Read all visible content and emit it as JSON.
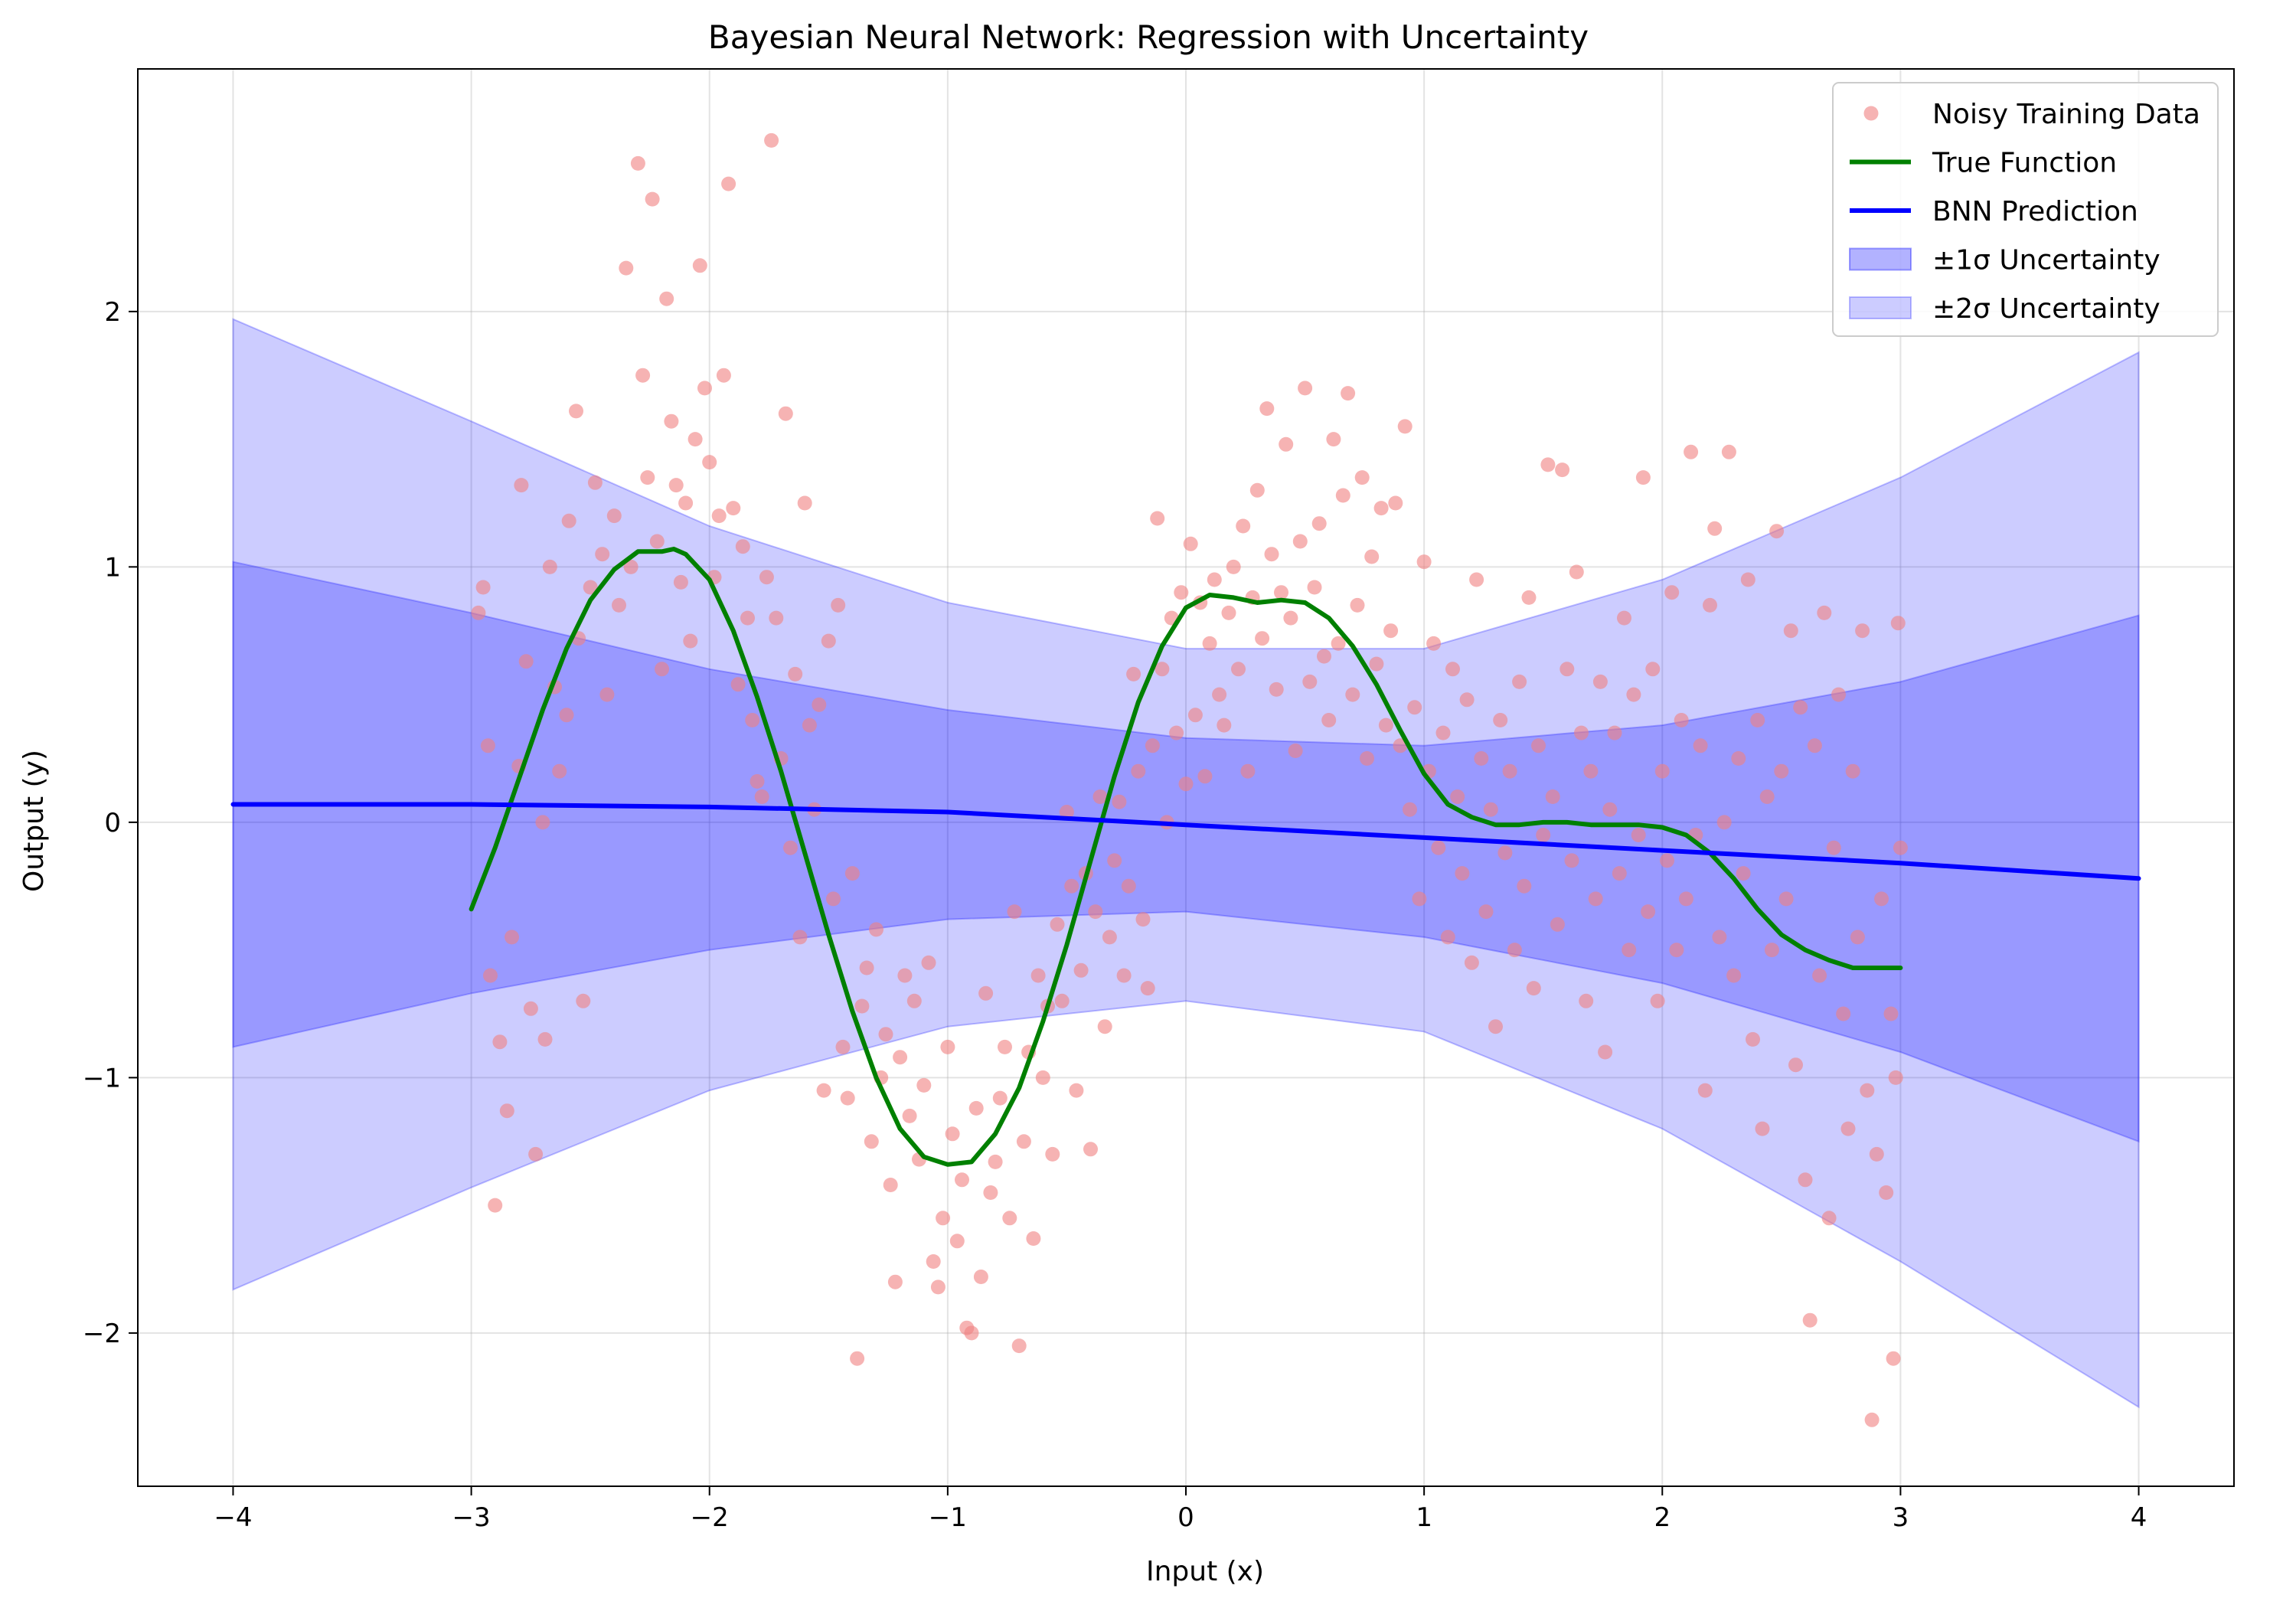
{
  "chart_data": {
    "type": "scatter",
    "title": "Bayesian Neural Network: Regression with Uncertainty",
    "xlabel": "Input (x)",
    "ylabel": "Output (y)",
    "xlim": [
      -4.4,
      4.4
    ],
    "ylim": [
      -2.6,
      2.95
    ],
    "xticks": [
      -4,
      -3,
      -2,
      -1,
      0,
      1,
      2,
      3,
      4
    ],
    "yticks": [
      -2,
      -1,
      0,
      1,
      2
    ],
    "xtick_labels": [
      "−4",
      "−3",
      "−2",
      "−1",
      "0",
      "1",
      "2",
      "3",
      "4"
    ],
    "ytick_labels": [
      "−2",
      "−1",
      "0",
      "1",
      "2"
    ],
    "grid": true,
    "legend_position": "top-right",
    "colors": {
      "scatter": "#f08080",
      "true_function": "#008000",
      "prediction": "#0000ff",
      "band1": "#0000ff",
      "band2": "#0000ff"
    },
    "legend": [
      {
        "key": "scatter",
        "label": "Noisy Training Data"
      },
      {
        "key": "true",
        "label": "True Function"
      },
      {
        "key": "pred",
        "label": "BNN Prediction"
      },
      {
        "key": "band1",
        "label": "±1σ Uncertainty"
      },
      {
        "key": "band2",
        "label": "±2σ Uncertainty"
      }
    ],
    "prediction": {
      "x": [
        -4,
        -3,
        -2,
        -1,
        0,
        1,
        2,
        3,
        4
      ],
      "y": [
        0.07,
        0.07,
        0.06,
        0.04,
        -0.01,
        -0.06,
        -0.11,
        -0.16,
        -0.22
      ]
    },
    "sigma1": {
      "x": [
        -4,
        -3,
        -2,
        -1,
        0,
        1,
        2,
        3,
        4
      ],
      "lower": [
        -0.88,
        -0.67,
        -0.5,
        -0.38,
        -0.35,
        -0.45,
        -0.63,
        -0.9,
        -1.25
      ],
      "upper": [
        1.02,
        0.82,
        0.6,
        0.44,
        0.33,
        0.3,
        0.38,
        0.55,
        0.81
      ]
    },
    "sigma2": {
      "x": [
        -4,
        -3,
        -2,
        -1,
        0,
        1,
        2,
        3,
        4
      ],
      "lower": [
        -1.83,
        -1.43,
        -1.05,
        -0.8,
        -0.7,
        -0.82,
        -1.2,
        -1.72,
        -2.29
      ],
      "upper": [
        1.97,
        1.57,
        1.16,
        0.86,
        0.68,
        0.68,
        0.95,
        1.35,
        1.84
      ]
    },
    "true_function": {
      "x": [
        -3.0,
        -2.9,
        -2.8,
        -2.7,
        -2.6,
        -2.5,
        -2.4,
        -2.3,
        -2.2,
        -2.15,
        -2.1,
        -2.0,
        -1.9,
        -1.8,
        -1.7,
        -1.6,
        -1.5,
        -1.4,
        -1.3,
        -1.2,
        -1.1,
        -1.0,
        -0.9,
        -0.8,
        -0.7,
        -0.6,
        -0.5,
        -0.4,
        -0.3,
        -0.2,
        -0.1,
        0.0,
        0.1,
        0.2,
        0.3,
        0.4,
        0.5,
        0.6,
        0.7,
        0.8,
        0.9,
        1.0,
        1.1,
        1.2,
        1.3,
        1.4,
        1.5,
        1.6,
        1.7,
        1.8,
        1.9,
        2.0,
        2.1,
        2.2,
        2.3,
        2.4,
        2.5,
        2.6,
        2.7,
        2.8,
        2.9,
        3.0
      ],
      "y": [
        -0.34,
        -0.1,
        0.17,
        0.44,
        0.68,
        0.87,
        0.99,
        1.06,
        1.06,
        1.07,
        1.05,
        0.95,
        0.75,
        0.49,
        0.2,
        -0.12,
        -0.44,
        -0.74,
        -1.0,
        -1.2,
        -1.31,
        -1.34,
        -1.33,
        -1.22,
        -1.04,
        -0.78,
        -0.48,
        -0.15,
        0.18,
        0.47,
        0.69,
        0.84,
        0.89,
        0.88,
        0.86,
        0.87,
        0.86,
        0.8,
        0.69,
        0.54,
        0.36,
        0.19,
        0.07,
        0.02,
        -0.01,
        -0.01,
        0.0,
        0.0,
        -0.01,
        -0.01,
        -0.01,
        -0.02,
        -0.05,
        -0.12,
        -0.22,
        -0.34,
        -0.44,
        -0.5,
        -0.54,
        -0.57,
        -0.57,
        -0.57
      ]
    },
    "scatter_points": [
      [
        -2.97,
        0.82
      ],
      [
        -2.95,
        0.92
      ],
      [
        -2.93,
        0.3
      ],
      [
        -2.92,
        -0.6
      ],
      [
        -2.9,
        -1.5
      ],
      [
        -2.88,
        -0.86
      ],
      [
        -2.85,
        -1.13
      ],
      [
        -2.83,
        -0.45
      ],
      [
        -2.8,
        0.22
      ],
      [
        -2.79,
        1.32
      ],
      [
        -2.77,
        0.63
      ],
      [
        -2.75,
        -0.73
      ],
      [
        -2.73,
        -1.3
      ],
      [
        -2.7,
        0.0
      ],
      [
        -2.69,
        -0.85
      ],
      [
        -2.67,
        1.0
      ],
      [
        -2.65,
        0.53
      ],
      [
        -2.63,
        0.2
      ],
      [
        -2.6,
        0.42
      ],
      [
        -2.59,
        1.18
      ],
      [
        -2.56,
        1.61
      ],
      [
        -2.55,
        0.72
      ],
      [
        -2.53,
        -0.7
      ],
      [
        -2.5,
        0.92
      ],
      [
        -2.48,
        1.33
      ],
      [
        -2.45,
        1.05
      ],
      [
        -2.43,
        0.5
      ],
      [
        -2.4,
        1.2
      ],
      [
        -2.38,
        0.85
      ],
      [
        -2.35,
        2.17
      ],
      [
        -2.33,
        1.0
      ],
      [
        -2.3,
        2.58
      ],
      [
        -2.28,
        1.75
      ],
      [
        -2.26,
        1.35
      ],
      [
        -2.24,
        2.44
      ],
      [
        -2.22,
        1.1
      ],
      [
        -2.2,
        0.6
      ],
      [
        -2.18,
        2.05
      ],
      [
        -2.16,
        1.57
      ],
      [
        -2.14,
        1.32
      ],
      [
        -2.12,
        0.94
      ],
      [
        -2.1,
        1.25
      ],
      [
        -2.08,
        0.71
      ],
      [
        -2.06,
        1.5
      ],
      [
        -2.04,
        2.18
      ],
      [
        -2.02,
        1.7
      ],
      [
        -2.0,
        1.41
      ],
      [
        -1.98,
        0.96
      ],
      [
        -1.96,
        1.2
      ],
      [
        -1.94,
        1.75
      ],
      [
        -1.92,
        2.5
      ],
      [
        -1.9,
        1.23
      ],
      [
        -1.88,
        0.54
      ],
      [
        -1.86,
        1.08
      ],
      [
        -1.84,
        0.8
      ],
      [
        -1.82,
        0.4
      ],
      [
        -1.8,
        0.16
      ],
      [
        -1.78,
        0.1
      ],
      [
        -1.76,
        0.96
      ],
      [
        -1.74,
        2.67
      ],
      [
        -1.72,
        0.8
      ],
      [
        -1.7,
        0.25
      ],
      [
        -1.68,
        1.6
      ],
      [
        -1.66,
        -0.1
      ],
      [
        -1.64,
        0.58
      ],
      [
        -1.62,
        -0.45
      ],
      [
        -1.6,
        1.25
      ],
      [
        -1.58,
        0.38
      ],
      [
        -1.56,
        0.05
      ],
      [
        -1.54,
        0.46
      ],
      [
        -1.52,
        -1.05
      ],
      [
        -1.5,
        0.71
      ],
      [
        -1.48,
        -0.3
      ],
      [
        -1.46,
        0.85
      ],
      [
        -1.44,
        -0.88
      ],
      [
        -1.42,
        -1.08
      ],
      [
        -1.4,
        -0.2
      ],
      [
        -1.38,
        -2.1
      ],
      [
        -1.36,
        -0.72
      ],
      [
        -1.34,
        -0.57
      ],
      [
        -1.32,
        -1.25
      ],
      [
        -1.3,
        -0.42
      ],
      [
        -1.28,
        -1.0
      ],
      [
        -1.26,
        -0.83
      ],
      [
        -1.24,
        -1.42
      ],
      [
        -1.22,
        -1.8
      ],
      [
        -1.2,
        -0.92
      ],
      [
        -1.18,
        -0.6
      ],
      [
        -1.16,
        -1.15
      ],
      [
        -1.14,
        -0.7
      ],
      [
        -1.12,
        -1.32
      ],
      [
        -1.1,
        -1.03
      ],
      [
        -1.08,
        -0.55
      ],
      [
        -1.06,
        -1.72
      ],
      [
        -1.04,
        -1.82
      ],
      [
        -1.02,
        -1.55
      ],
      [
        -1.0,
        -0.88
      ],
      [
        -0.98,
        -1.22
      ],
      [
        -0.96,
        -1.64
      ],
      [
        -0.94,
        -1.4
      ],
      [
        -0.92,
        -1.98
      ],
      [
        -0.9,
        -2.0
      ],
      [
        -0.88,
        -1.12
      ],
      [
        -0.86,
        -1.78
      ],
      [
        -0.84,
        -0.67
      ],
      [
        -0.82,
        -1.45
      ],
      [
        -0.8,
        -1.33
      ],
      [
        -0.78,
        -1.08
      ],
      [
        -0.76,
        -0.88
      ],
      [
        -0.74,
        -1.55
      ],
      [
        -0.72,
        -0.35
      ],
      [
        -0.7,
        -2.05
      ],
      [
        -0.68,
        -1.25
      ],
      [
        -0.66,
        -0.9
      ],
      [
        -0.64,
        -1.63
      ],
      [
        -0.62,
        -0.6
      ],
      [
        -0.6,
        -1.0
      ],
      [
        -0.58,
        -0.72
      ],
      [
        -0.56,
        -1.3
      ],
      [
        -0.54,
        -0.4
      ],
      [
        -0.52,
        -0.7
      ],
      [
        -0.5,
        0.04
      ],
      [
        -0.48,
        -0.25
      ],
      [
        -0.46,
        -1.05
      ],
      [
        -0.44,
        -0.58
      ],
      [
        -0.42,
        -0.2
      ],
      [
        -0.4,
        -1.28
      ],
      [
        -0.38,
        -0.35
      ],
      [
        -0.36,
        0.1
      ],
      [
        -0.34,
        -0.8
      ],
      [
        -0.32,
        -0.45
      ],
      [
        -0.3,
        -0.15
      ],
      [
        -0.28,
        0.08
      ],
      [
        -0.26,
        -0.6
      ],
      [
        -0.24,
        -0.25
      ],
      [
        -0.22,
        0.58
      ],
      [
        -0.2,
        0.2
      ],
      [
        -0.18,
        -0.38
      ],
      [
        -0.16,
        -0.65
      ],
      [
        -0.14,
        0.3
      ],
      [
        -0.12,
        1.19
      ],
      [
        -0.1,
        0.6
      ],
      [
        -0.08,
        0.0
      ],
      [
        -0.06,
        0.8
      ],
      [
        -0.04,
        0.35
      ],
      [
        -0.02,
        0.9
      ],
      [
        0.0,
        0.15
      ],
      [
        0.02,
        1.09
      ],
      [
        0.04,
        0.42
      ],
      [
        0.06,
        0.86
      ],
      [
        0.08,
        0.18
      ],
      [
        0.1,
        0.7
      ],
      [
        0.12,
        0.95
      ],
      [
        0.14,
        0.5
      ],
      [
        0.16,
        0.38
      ],
      [
        0.18,
        0.82
      ],
      [
        0.2,
        1.0
      ],
      [
        0.22,
        0.6
      ],
      [
        0.24,
        1.16
      ],
      [
        0.26,
        0.2
      ],
      [
        0.28,
        0.88
      ],
      [
        0.3,
        1.3
      ],
      [
        0.32,
        0.72
      ],
      [
        0.34,
        1.62
      ],
      [
        0.36,
        1.05
      ],
      [
        0.38,
        0.52
      ],
      [
        0.4,
        0.9
      ],
      [
        0.42,
        1.48
      ],
      [
        0.44,
        0.8
      ],
      [
        0.46,
        0.28
      ],
      [
        0.48,
        1.1
      ],
      [
        0.5,
        1.7
      ],
      [
        0.52,
        0.55
      ],
      [
        0.54,
        0.92
      ],
      [
        0.56,
        1.17
      ],
      [
        0.58,
        0.65
      ],
      [
        0.6,
        0.4
      ],
      [
        0.62,
        1.5
      ],
      [
        0.64,
        0.7
      ],
      [
        0.66,
        1.28
      ],
      [
        0.68,
        1.68
      ],
      [
        0.7,
        0.5
      ],
      [
        0.72,
        0.85
      ],
      [
        0.74,
        1.35
      ],
      [
        0.76,
        0.25
      ],
      [
        0.78,
        1.04
      ],
      [
        0.8,
        0.62
      ],
      [
        0.82,
        1.23
      ],
      [
        0.84,
        0.38
      ],
      [
        0.86,
        0.75
      ],
      [
        0.88,
        1.25
      ],
      [
        0.9,
        0.3
      ],
      [
        0.92,
        1.55
      ],
      [
        0.94,
        0.05
      ],
      [
        0.96,
        0.45
      ],
      [
        0.98,
        -0.3
      ],
      [
        1.0,
        1.02
      ],
      [
        1.02,
        0.2
      ],
      [
        1.04,
        0.7
      ],
      [
        1.06,
        -0.1
      ],
      [
        1.08,
        0.35
      ],
      [
        1.1,
        -0.45
      ],
      [
        1.12,
        0.6
      ],
      [
        1.14,
        0.1
      ],
      [
        1.16,
        -0.2
      ],
      [
        1.18,
        0.48
      ],
      [
        1.2,
        -0.55
      ],
      [
        1.22,
        0.95
      ],
      [
        1.24,
        0.25
      ],
      [
        1.26,
        -0.35
      ],
      [
        1.28,
        0.05
      ],
      [
        1.3,
        -0.8
      ],
      [
        1.32,
        0.4
      ],
      [
        1.34,
        -0.12
      ],
      [
        1.36,
        0.2
      ],
      [
        1.38,
        -0.5
      ],
      [
        1.4,
        0.55
      ],
      [
        1.42,
        -0.25
      ],
      [
        1.44,
        0.88
      ],
      [
        1.46,
        -0.65
      ],
      [
        1.48,
        0.3
      ],
      [
        1.5,
        -0.05
      ],
      [
        1.52,
        1.4
      ],
      [
        1.54,
        0.1
      ],
      [
        1.56,
        -0.4
      ],
      [
        1.58,
        1.38
      ],
      [
        1.6,
        0.6
      ],
      [
        1.62,
        -0.15
      ],
      [
        1.64,
        0.98
      ],
      [
        1.66,
        0.35
      ],
      [
        1.68,
        -0.7
      ],
      [
        1.7,
        0.2
      ],
      [
        1.72,
        -0.3
      ],
      [
        1.74,
        0.55
      ],
      [
        1.76,
        -0.9
      ],
      [
        1.78,
        0.05
      ],
      [
        1.8,
        0.35
      ],
      [
        1.82,
        -0.2
      ],
      [
        1.84,
        0.8
      ],
      [
        1.86,
        -0.5
      ],
      [
        1.88,
        0.5
      ],
      [
        1.9,
        -0.05
      ],
      [
        1.92,
        1.35
      ],
      [
        1.94,
        -0.35
      ],
      [
        1.96,
        0.6
      ],
      [
        1.98,
        -0.7
      ],
      [
        2.0,
        0.2
      ],
      [
        2.02,
        -0.15
      ],
      [
        2.04,
        0.9
      ],
      [
        2.06,
        -0.5
      ],
      [
        2.08,
        0.4
      ],
      [
        2.1,
        -0.3
      ],
      [
        2.12,
        1.45
      ],
      [
        2.14,
        -0.05
      ],
      [
        2.16,
        0.3
      ],
      [
        2.18,
        -1.05
      ],
      [
        2.2,
        0.85
      ],
      [
        2.22,
        1.15
      ],
      [
        2.24,
        -0.45
      ],
      [
        2.26,
        0.0
      ],
      [
        2.28,
        1.45
      ],
      [
        2.3,
        -0.6
      ],
      [
        2.32,
        0.25
      ],
      [
        2.34,
        -0.2
      ],
      [
        2.36,
        0.95
      ],
      [
        2.38,
        -0.85
      ],
      [
        2.4,
        0.4
      ],
      [
        2.42,
        -1.2
      ],
      [
        2.44,
        0.1
      ],
      [
        2.46,
        -0.5
      ],
      [
        2.48,
        1.14
      ],
      [
        2.5,
        0.2
      ],
      [
        2.52,
        -0.3
      ],
      [
        2.54,
        0.75
      ],
      [
        2.56,
        -0.95
      ],
      [
        2.58,
        0.45
      ],
      [
        2.6,
        -1.4
      ],
      [
        2.62,
        -1.95
      ],
      [
        2.64,
        0.3
      ],
      [
        2.66,
        -0.6
      ],
      [
        2.68,
        0.82
      ],
      [
        2.7,
        -1.55
      ],
      [
        2.72,
        -0.1
      ],
      [
        2.74,
        0.5
      ],
      [
        2.76,
        -0.75
      ],
      [
        2.78,
        -1.2
      ],
      [
        2.8,
        0.2
      ],
      [
        2.82,
        -0.45
      ],
      [
        2.84,
        0.75
      ],
      [
        2.86,
        -1.05
      ],
      [
        2.88,
        -2.34
      ],
      [
        2.9,
        -1.3
      ],
      [
        2.92,
        -0.3
      ],
      [
        2.94,
        -1.45
      ],
      [
        2.96,
        -0.75
      ],
      [
        2.97,
        -2.1
      ],
      [
        2.98,
        -1.0
      ],
      [
        2.99,
        0.78
      ],
      [
        3.0,
        -0.1
      ]
    ]
  }
}
